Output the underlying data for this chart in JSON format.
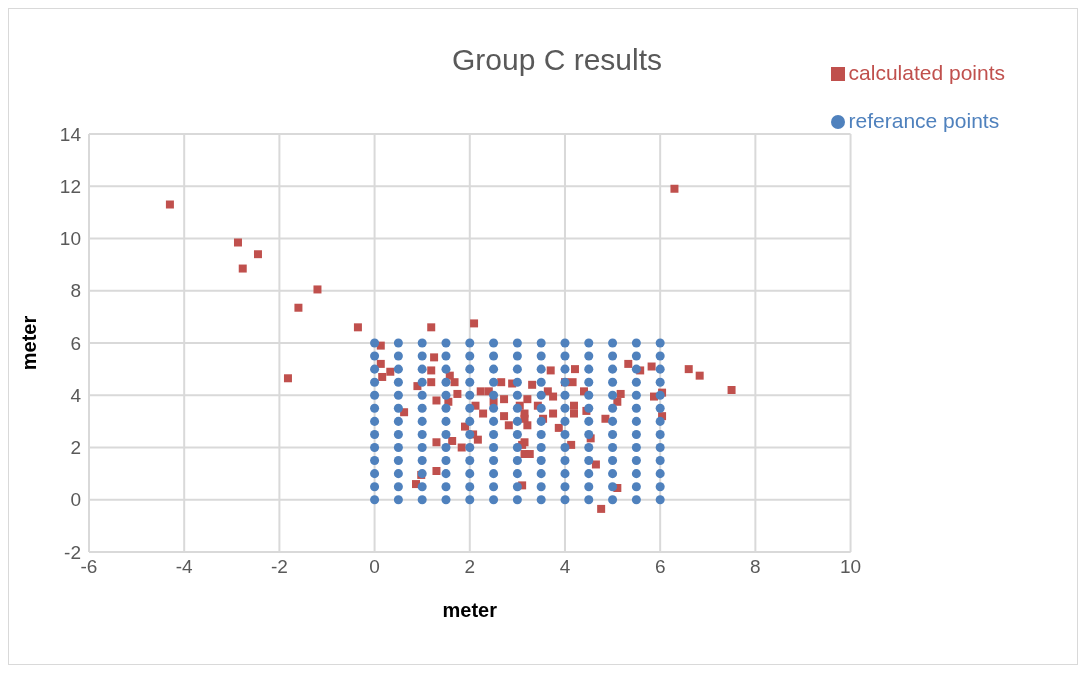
{
  "chart_data": {
    "type": "scatter",
    "title": "Group C results",
    "xlabel": "meter",
    "ylabel": "meter",
    "xlim": [
      -6,
      10
    ],
    "xticks": [
      -6,
      -4,
      -2,
      0,
      2,
      4,
      6,
      8,
      10
    ],
    "ylim": [
      -2,
      14
    ],
    "yticks": [
      -2,
      0,
      2,
      4,
      6,
      8,
      10,
      12,
      14
    ],
    "grid": true,
    "legend": "top right",
    "series": [
      {
        "name": "calculated points",
        "color": "#c0504d",
        "marker": "square",
        "x": [
          -4.3,
          -2.87,
          -2.45,
          -2.77,
          -1.2,
          -1.6,
          -0.35,
          -1.82,
          6.3,
          6.6,
          6.83,
          7.5,
          1.19,
          2.09,
          0.13,
          0.13,
          0.16,
          0.33,
          1.25,
          1.19,
          1.19,
          0.9,
          1.58,
          1.68,
          1.74,
          1.3,
          1.55,
          0.62,
          2.23,
          2.12,
          2.28,
          1.9,
          2.07,
          2.17,
          1.3,
          1.63,
          1.83,
          1.3,
          0.98,
          0.87,
          2.66,
          2.89,
          2.72,
          2.72,
          2.82,
          3.05,
          3.15,
          3.15,
          3.15,
          3.1,
          2.4,
          2.5,
          3.7,
          4.21,
          4.16,
          4.0,
          3.31,
          3.64,
          3.75,
          3.21,
          4.19,
          3.15,
          3.75,
          4.19,
          3.21,
          3.87,
          4.4,
          4.45,
          4.85,
          5.17,
          5.1,
          5.33,
          5.58,
          5.82,
          5.87,
          6.04,
          6.04,
          4.13,
          4.54,
          4.65,
          5.1,
          3.1,
          3.26,
          4.76,
          3.43,
          3.54
        ],
        "values": [
          11.3,
          9.85,
          9.4,
          8.85,
          8.05,
          7.35,
          6.6,
          4.65,
          11.9,
          5.0,
          4.75,
          4.2,
          6.6,
          6.75,
          5.9,
          5.2,
          4.7,
          4.9,
          5.45,
          4.95,
          4.5,
          4.35,
          4.75,
          4.5,
          4.05,
          3.8,
          3.75,
          3.35,
          4.15,
          3.6,
          3.3,
          2.8,
          2.5,
          2.3,
          2.2,
          2.25,
          2.0,
          1.1,
          0.95,
          0.6,
          4.5,
          4.45,
          3.85,
          3.2,
          2.85,
          3.6,
          3.1,
          2.2,
          1.75,
          0.55,
          4.15,
          3.75,
          4.95,
          5.0,
          4.5,
          4.5,
          4.4,
          4.15,
          3.95,
          3.85,
          3.6,
          3.3,
          3.3,
          3.3,
          2.85,
          2.75,
          4.15,
          3.4,
          3.1,
          4.05,
          3.75,
          5.2,
          4.95,
          5.1,
          3.95,
          4.1,
          3.2,
          2.1,
          2.35,
          1.35,
          0.45,
          2.1,
          1.75,
          -0.35,
          3.6,
          3.1
        ]
      },
      {
        "name": "referance points",
        "color": "#4f81bd",
        "marker": "circle",
        "x": [
          0,
          0,
          0,
          0,
          0,
          0,
          0,
          0,
          0,
          0,
          0,
          0,
          0,
          0.5,
          0.5,
          0.5,
          0.5,
          0.5,
          0.5,
          0.5,
          0.5,
          0.5,
          0.5,
          0.5,
          0.5,
          0.5,
          1,
          1,
          1,
          1,
          1,
          1,
          1,
          1,
          1,
          1,
          1,
          1,
          1,
          1.5,
          1.5,
          1.5,
          1.5,
          1.5,
          1.5,
          1.5,
          1.5,
          1.5,
          1.5,
          1.5,
          1.5,
          1.5,
          2,
          2,
          2,
          2,
          2,
          2,
          2,
          2,
          2,
          2,
          2,
          2,
          2,
          2.5,
          2.5,
          2.5,
          2.5,
          2.5,
          2.5,
          2.5,
          2.5,
          2.5,
          2.5,
          2.5,
          2.5,
          2.5,
          3,
          3,
          3,
          3,
          3,
          3,
          3,
          3,
          3,
          3,
          3,
          3,
          3,
          3.5,
          3.5,
          3.5,
          3.5,
          3.5,
          3.5,
          3.5,
          3.5,
          3.5,
          3.5,
          3.5,
          3.5,
          3.5,
          4,
          4,
          4,
          4,
          4,
          4,
          4,
          4,
          4,
          4,
          4,
          4,
          4,
          4.5,
          4.5,
          4.5,
          4.5,
          4.5,
          4.5,
          4.5,
          4.5,
          4.5,
          4.5,
          4.5,
          4.5,
          4.5,
          5,
          5,
          5,
          5,
          5,
          5,
          5,
          5,
          5,
          5,
          5,
          5,
          5,
          5.5,
          5.5,
          5.5,
          5.5,
          5.5,
          5.5,
          5.5,
          5.5,
          5.5,
          5.5,
          5.5,
          5.5,
          5.5,
          6,
          6,
          6,
          6,
          6,
          6,
          6,
          6,
          6,
          6,
          6,
          6,
          6
        ],
        "values": [
          0,
          0.5,
          1,
          1.5,
          2,
          2.5,
          3,
          3.5,
          4,
          4.5,
          5,
          5.5,
          6,
          0,
          0.5,
          1,
          1.5,
          2,
          2.5,
          3,
          3.5,
          4,
          4.5,
          5,
          5.5,
          6,
          0,
          0.5,
          1,
          1.5,
          2,
          2.5,
          3,
          3.5,
          4,
          4.5,
          5,
          5.5,
          6,
          0,
          0.5,
          1,
          1.5,
          2,
          2.5,
          3,
          3.5,
          4,
          4.5,
          5,
          5.5,
          6,
          0,
          0.5,
          1,
          1.5,
          2,
          2.5,
          3,
          3.5,
          4,
          4.5,
          5,
          5.5,
          6,
          0,
          0.5,
          1,
          1.5,
          2,
          2.5,
          3,
          3.5,
          4,
          4.5,
          5,
          5.5,
          6,
          0,
          0.5,
          1,
          1.5,
          2,
          2.5,
          3,
          3.5,
          4,
          4.5,
          5,
          5.5,
          6,
          0,
          0.5,
          1,
          1.5,
          2,
          2.5,
          3,
          3.5,
          4,
          4.5,
          5,
          5.5,
          6,
          0,
          0.5,
          1,
          1.5,
          2,
          2.5,
          3,
          3.5,
          4,
          4.5,
          5,
          5.5,
          6,
          0,
          0.5,
          1,
          1.5,
          2,
          2.5,
          3,
          3.5,
          4,
          4.5,
          5,
          5.5,
          6,
          0,
          0.5,
          1,
          1.5,
          2,
          2.5,
          3,
          3.5,
          4,
          4.5,
          5,
          5.5,
          6,
          0,
          0.5,
          1,
          1.5,
          2,
          2.5,
          3,
          3.5,
          4,
          4.5,
          5,
          5.5,
          6,
          0,
          0.5,
          1,
          1.5,
          2,
          2.5,
          3,
          3.5,
          4,
          4.5,
          5,
          5.5,
          6
        ]
      }
    ]
  }
}
